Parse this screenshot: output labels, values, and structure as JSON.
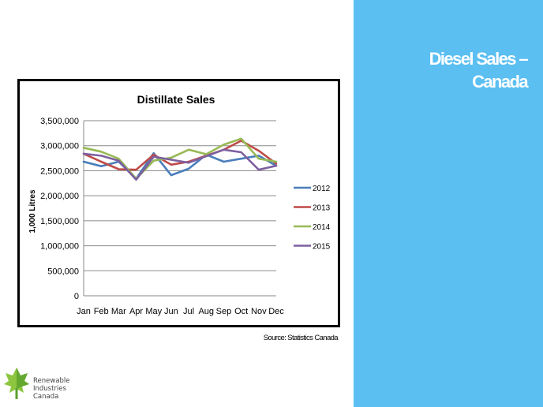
{
  "slide": {
    "title_line1": "Diesel Sales –",
    "title_line2": "Canada",
    "source": "Source: Statistics Canada",
    "logo": {
      "line1": "Renewable",
      "line2": "Industries",
      "line3": "Canada"
    },
    "colors": {
      "panel": "#5bbff2",
      "logo_green": "#8cc63f"
    }
  },
  "chart_data": {
    "type": "line",
    "title": "Distillate Sales",
    "ylabel": "1,000 Litres",
    "xlabel": "",
    "categories": [
      "Jan",
      "Feb",
      "Mar",
      "Apr",
      "May",
      "Jun",
      "Jul",
      "Aug",
      "Sep",
      "Oct",
      "Nov",
      "Dec"
    ],
    "ylim": [
      0,
      3500000
    ],
    "yticks": [
      0,
      500000,
      1000000,
      1500000,
      2000000,
      2500000,
      3000000,
      3500000
    ],
    "ytick_labels": [
      "0",
      "500,000",
      "1,000,000",
      "1,500,000",
      "2,000,000",
      "2,500,000",
      "3,000,000",
      "3,500,000"
    ],
    "grid": true,
    "legend_position": "right",
    "series": [
      {
        "name": "2012",
        "color": "#4a7ebb",
        "values": [
          2680000,
          2590000,
          2680000,
          2340000,
          2850000,
          2410000,
          2540000,
          2820000,
          2680000,
          2740000,
          2800000,
          2600000
        ]
      },
      {
        "name": "2013",
        "color": "#be4b48",
        "values": [
          2840000,
          2680000,
          2530000,
          2520000,
          2820000,
          2620000,
          2680000,
          2800000,
          2920000,
          3100000,
          2900000,
          2640000
        ]
      },
      {
        "name": "2014",
        "color": "#98b954",
        "values": [
          2960000,
          2880000,
          2740000,
          2340000,
          2700000,
          2760000,
          2920000,
          2830000,
          3020000,
          3140000,
          2740000,
          2680000
        ]
      },
      {
        "name": "2015",
        "color": "#7d60a0",
        "values": [
          2840000,
          2800000,
          2700000,
          2320000,
          2780000,
          2720000,
          2660000,
          2790000,
          2920000,
          2870000,
          2520000,
          2600000
        ]
      }
    ]
  }
}
